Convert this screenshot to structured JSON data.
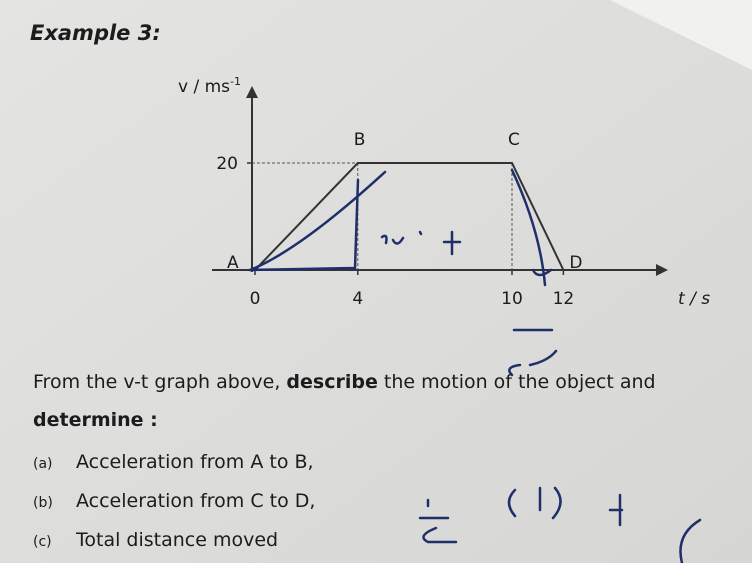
{
  "title": "Example 3:",
  "graph": {
    "y_label": "v / ms",
    "y_label_sup": "-1",
    "x_label": "t / s",
    "xticks": [
      0,
      4,
      10,
      12
    ],
    "yticks": [
      20
    ],
    "points": [
      {
        "label": "A",
        "t": 0,
        "v": 0
      },
      {
        "label": "B",
        "t": 4,
        "v": 20
      },
      {
        "label": "C",
        "t": 10,
        "v": 20
      },
      {
        "label": "D",
        "t": 12,
        "v": 0
      }
    ]
  },
  "question": {
    "intro": [
      "From the v-t graph above, ",
      "describe",
      " the motion of the object and"
    ],
    "determine": "determine :",
    "items": [
      {
        "marker": "(a)",
        "text": "Acceleration from A to B,"
      },
      {
        "marker": "(b)",
        "text": "Acceleration from C to D,"
      },
      {
        "marker": "(c)",
        "text": "Total distance moved"
      }
    ]
  }
}
